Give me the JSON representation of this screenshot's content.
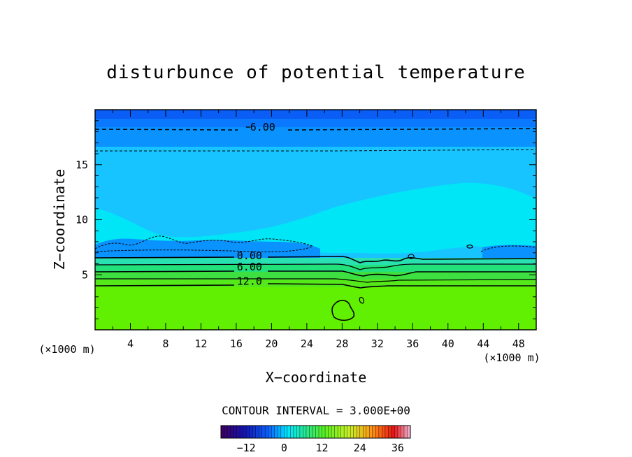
{
  "colors": {
    "band_above_6": "#0a5ef5",
    "band_3_6": "#0a78ff",
    "band_0_3": "#0a92ff",
    "band_m3_0": "#18c4ff",
    "band_m6_m3": "#00e6f6",
    "low_green_1": "#29e0b0",
    "low_green_2": "#22e07a",
    "low_green_3": "#3de040",
    "low_green_4": "#55e81a",
    "base_green": "#62f002"
  },
  "chart_data": {
    "type": "heatmap",
    "title": "disturbunce of potential temperature",
    "xlabel": "X−coordinate",
    "ylabel": "Z−coordinate",
    "x_unit": "(×1000 m)",
    "y_unit": "(×1000 m)",
    "xlim": [
      0,
      50
    ],
    "ylim": [
      0,
      20
    ],
    "x_ticks": [
      4,
      8,
      12,
      16,
      20,
      24,
      28,
      32,
      36,
      40,
      44,
      48
    ],
    "y_ticks": [
      5,
      10,
      15
    ],
    "contour_interval_label": "CONTOUR INTERVAL = 3.000E+00",
    "contour_labels": [
      {
        "text": "6.00",
        "x": 19,
        "z": 18.1,
        "negative": true
      },
      {
        "text": "0.00",
        "x": 17.5,
        "z": 6.4,
        "negative": false
      },
      {
        "text": "6.00",
        "x": 17.5,
        "z": 5.4,
        "negative": false
      },
      {
        "text": "12.0",
        "x": 17.5,
        "z": 4.1,
        "negative": false
      }
    ],
    "colorbar": {
      "min": -20,
      "max": 40,
      "ticks": [
        -12,
        0,
        12,
        24,
        36
      ],
      "tick_labels": [
        "−12",
        "0",
        "12",
        "24",
        "36"
      ]
    }
  }
}
